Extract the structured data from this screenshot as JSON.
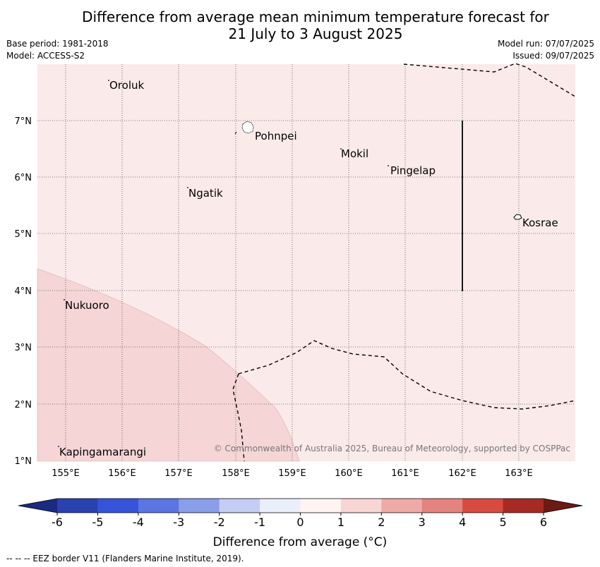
{
  "title": {
    "line1": "Difference from average mean minimum temperature forecast for",
    "line2": "21 July to 3 August 2025"
  },
  "meta": {
    "base_period": "Base period: 1981-2018",
    "model": "Model: ACCESS-S2",
    "model_run": "Model run: 07/07/2025",
    "issued": "Issued: 09/07/2025"
  },
  "map": {
    "background_color": "#fbeaea",
    "warm_region_color": "#f5d5d5",
    "lat_labels": [
      "7°N",
      "6°N",
      "5°N",
      "4°N",
      "3°N",
      "2°N",
      "1°N"
    ],
    "lon_labels": [
      "155°E",
      "156°E",
      "157°E",
      "158°E",
      "159°E",
      "160°E",
      "161°E",
      "162°E",
      "163°E"
    ],
    "places": [
      {
        "name": "Oroluk"
      },
      {
        "name": "Pohnpei"
      },
      {
        "name": "Mokil"
      },
      {
        "name": "Pingelap"
      },
      {
        "name": "Ngatik"
      },
      {
        "name": "Kosrae"
      },
      {
        "name": "Nukuoro"
      },
      {
        "name": "Kapingamarangi"
      }
    ],
    "copyright": "© Commonwealth of Australia 2025, Bureau of Meteorology, supported by COSPPac"
  },
  "colorbar": {
    "ticks": [
      "-6",
      "-5",
      "-4",
      "-3",
      "-2",
      "-1",
      "0",
      "1",
      "2",
      "3",
      "4",
      "5",
      "6"
    ],
    "colors": [
      "#2a42b0",
      "#3653dc",
      "#5b75e2",
      "#8a9eea",
      "#c4cdf4",
      "#ebeefb",
      "#fff4f2",
      "#f8d6d4",
      "#eeaaa7",
      "#e5837e",
      "#d84a40",
      "#a82a24"
    ],
    "under_color": "#1a2a80",
    "over_color": "#6b1a14",
    "label": "Difference from average (°C)"
  },
  "footnote": "--  --  -- EEZ border V11 (Flanders Marine Institute, 2019)."
}
